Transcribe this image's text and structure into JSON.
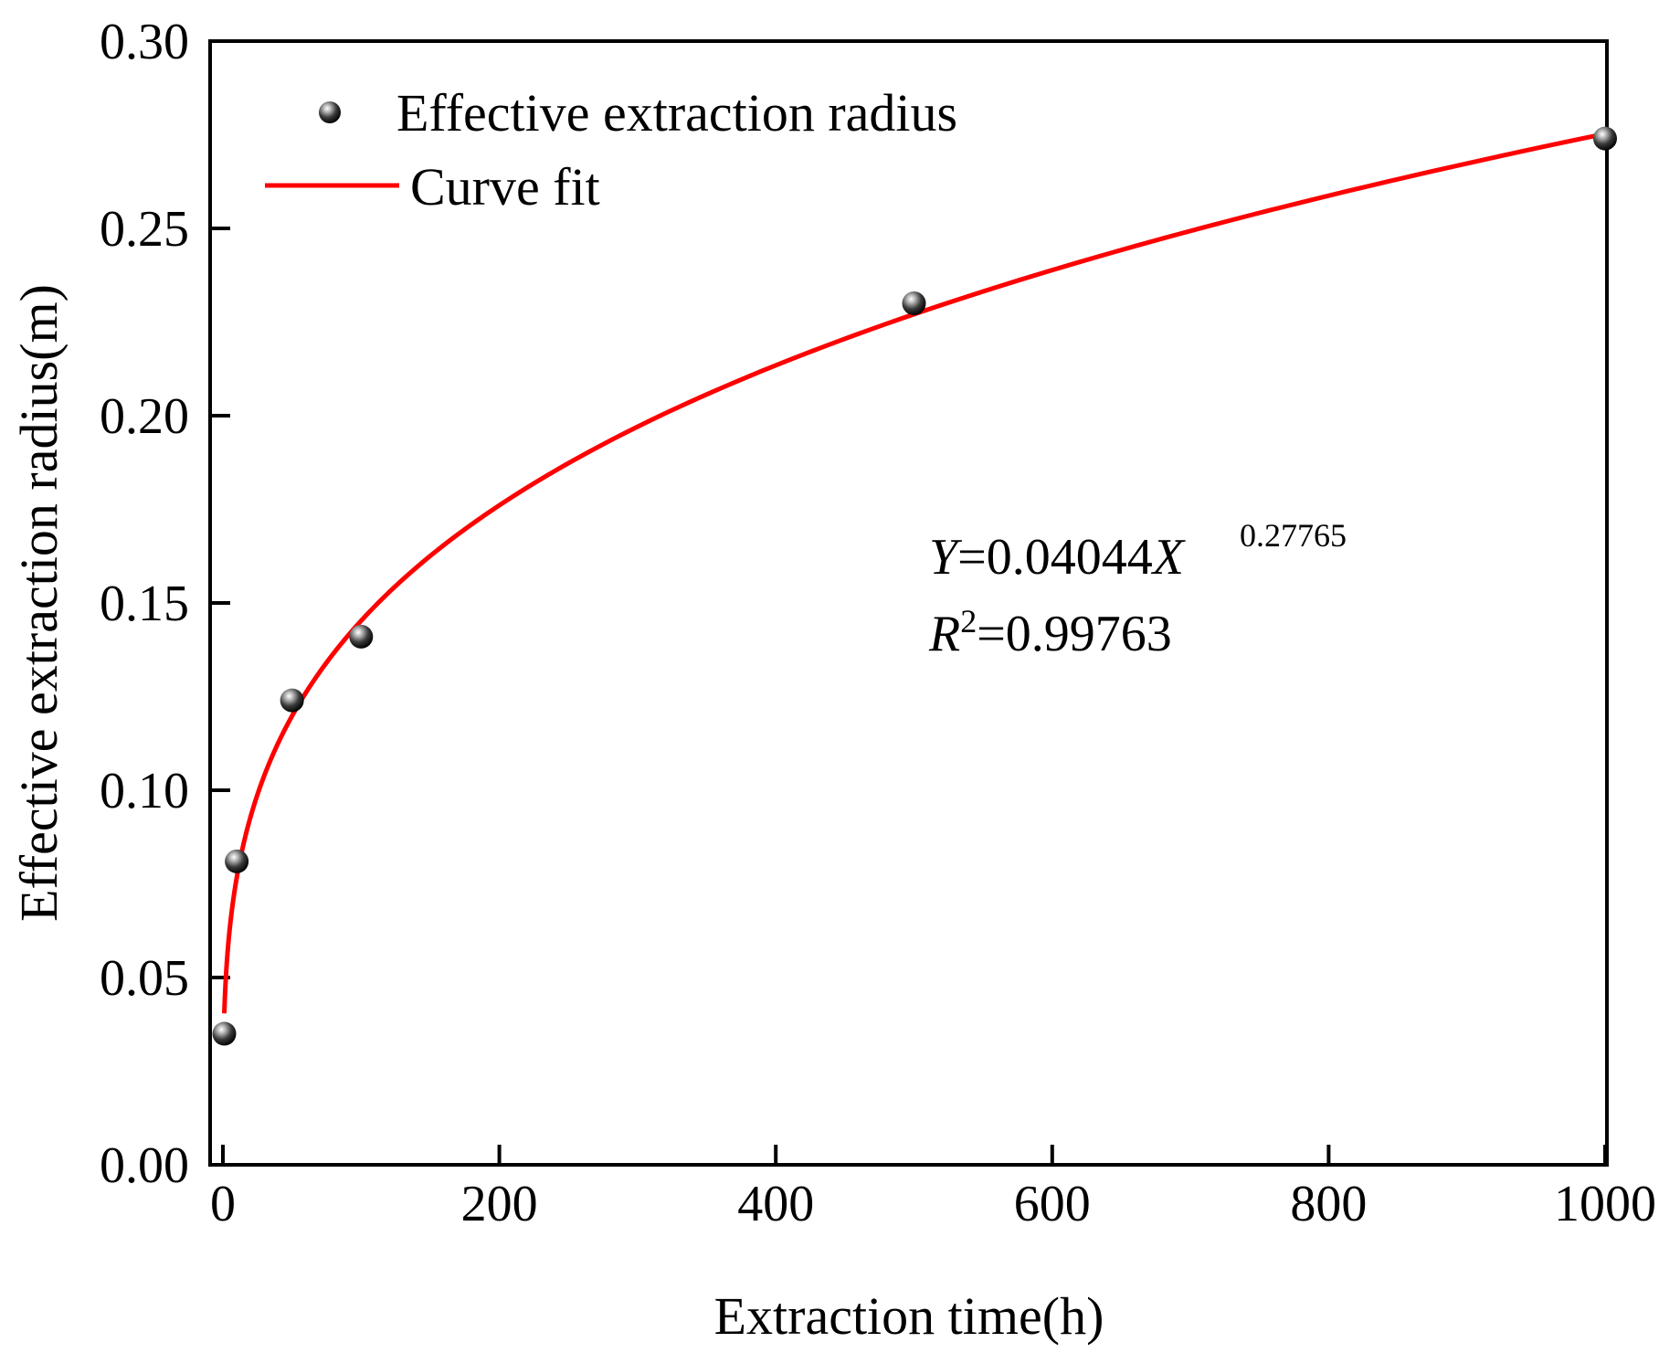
{
  "chart_data": {
    "type": "scatter",
    "title": "",
    "xlabel": "Extraction time(h)",
    "ylabel": "Effective extraction radius(m)",
    "xlim": [
      -15,
      1000
    ],
    "ylim": [
      0,
      0.3
    ],
    "xticks": [
      0,
      200,
      400,
      600,
      800,
      1000
    ],
    "yticks": [
      0.0,
      0.05,
      0.1,
      0.15,
      0.2,
      0.25,
      0.3
    ],
    "xtick_labels": [
      "0",
      "200",
      "400",
      "600",
      "800",
      "1000"
    ],
    "ytick_labels": [
      "0.00",
      "0.05",
      "0.10",
      "0.15",
      "0.20",
      "0.25",
      "0.30"
    ],
    "grid": false,
    "legend_position": "top-left",
    "series": [
      {
        "name": "Effective extraction radius",
        "kind": "scatter",
        "color": "#000000",
        "x": [
          1,
          10,
          50,
          100,
          500,
          1000
        ],
        "y": [
          0.035,
          0.081,
          0.124,
          0.141,
          0.23,
          0.274
        ]
      },
      {
        "name": "Curve fit",
        "kind": "line",
        "color": "#ff0000",
        "model": {
          "a": 0.04044,
          "b": 0.27765
        },
        "x_range": [
          1,
          1000
        ]
      }
    ],
    "annotation": {
      "y_symbol": "Y",
      "equation_body": "=0.04044",
      "x_symbol": "X",
      "exponent": "0.27765",
      "r_symbol": "R",
      "r_superscript": "2",
      "r_value": "=0.99763"
    }
  }
}
